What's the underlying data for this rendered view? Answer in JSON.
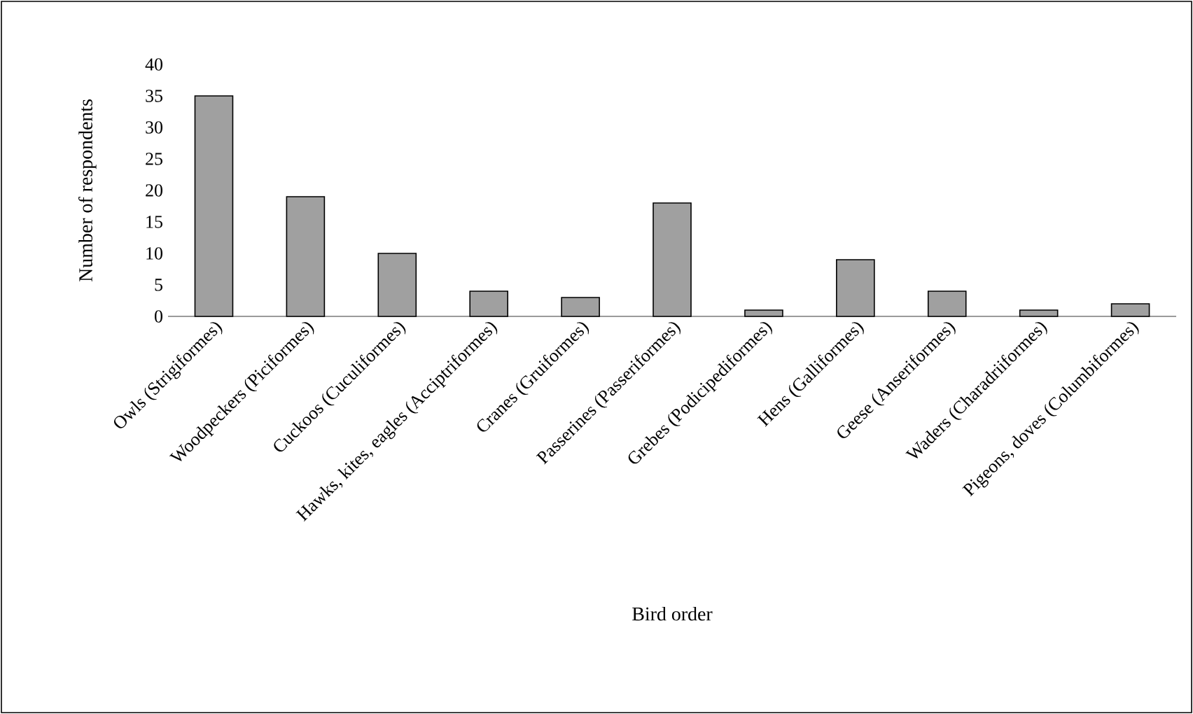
{
  "chart_data": {
    "type": "bar",
    "xlabel": "Bird order",
    "ylabel": "Number of respondents",
    "categories": [
      "Owls (Strigiformes)",
      "Woodpeckers (Piciformes)",
      "Cuckoos (Cuculiformes)",
      "Hawks, kites, eagles (Acciptriformes)",
      "Cranes (Gruiformes)",
      "Passerines (Passeriformes)",
      "Grebes (Podicipediformes)",
      "Hens (Galliformes)",
      "Geese (Anseriformes)",
      "Waders (Charadriiformes)",
      "Pigeons, doves (Columbiformes)"
    ],
    "values": [
      35,
      19,
      10,
      4,
      3,
      18,
      1,
      9,
      4,
      1,
      2
    ],
    "color": "#a0a0a0",
    "ylim": [
      0,
      40
    ],
    "yticks": [
      0,
      5,
      10,
      15,
      20,
      25,
      30,
      35,
      40
    ]
  }
}
